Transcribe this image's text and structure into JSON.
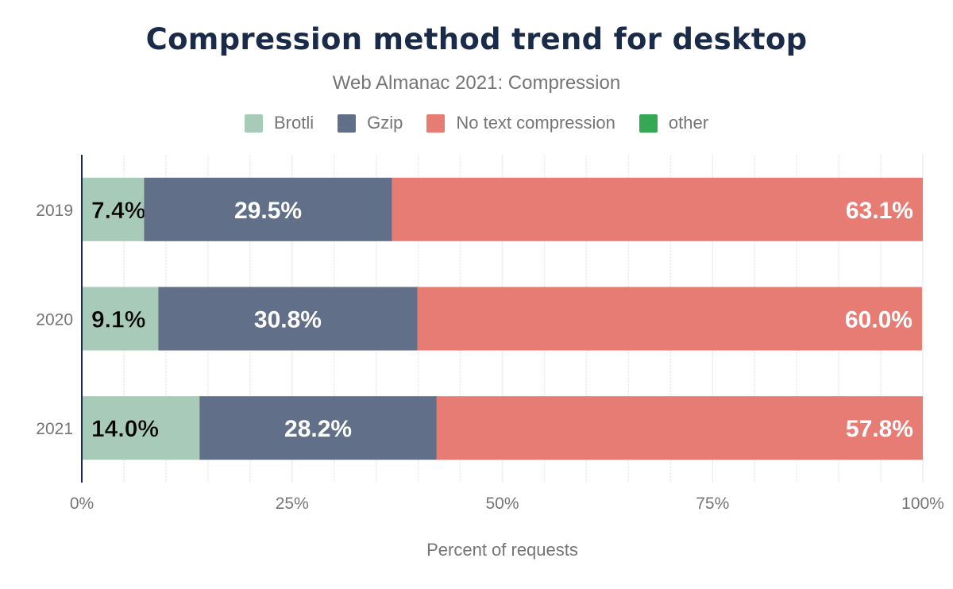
{
  "chart_data": {
    "type": "bar",
    "orientation": "horizontal",
    "stacked": true,
    "title": "Compression method trend for desktop",
    "subtitle": "Web Almanac 2021: Compression",
    "xlabel": "Percent of requests",
    "ylabel": "",
    "xlim": [
      0,
      100
    ],
    "x_ticks": [
      "0%",
      "25%",
      "50%",
      "75%",
      "100%"
    ],
    "grid": true,
    "legend_position": "top",
    "categories": [
      "2019",
      "2020",
      "2021"
    ],
    "series": [
      {
        "name": "Brotli",
        "color": "#a8cbb9",
        "values": [
          7.4,
          9.1,
          14.0
        ],
        "labels": [
          "7.4%",
          "9.1%",
          "14.0%"
        ]
      },
      {
        "name": "Gzip",
        "color": "#617088",
        "values": [
          29.5,
          30.8,
          28.2
        ],
        "labels": [
          "29.5%",
          "30.8%",
          "28.2%"
        ]
      },
      {
        "name": "No text compression",
        "color": "#e77c75",
        "values": [
          63.1,
          60.0,
          57.8
        ],
        "labels": [
          "63.1%",
          "60.0%",
          "57.8%"
        ]
      },
      {
        "name": "other",
        "color": "#34a853",
        "values": [
          0,
          0,
          0
        ],
        "labels": []
      }
    ]
  }
}
